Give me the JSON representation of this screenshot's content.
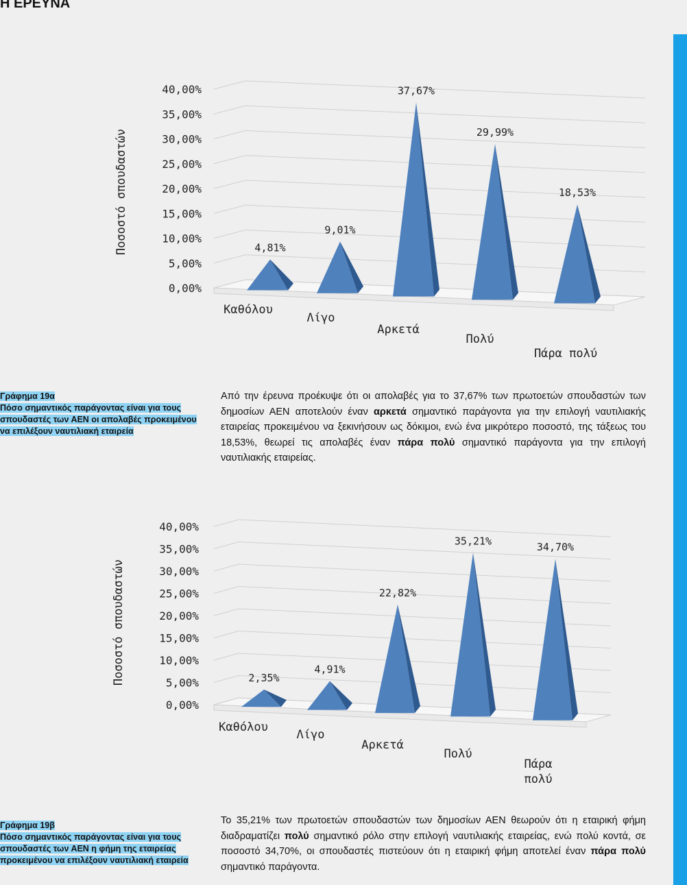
{
  "header": {
    "title": "Η ΕΡΕΥΝΑ"
  },
  "chart_data": [
    {
      "type": "bar",
      "categories": [
        "Καθόλου",
        "Λίγο",
        "Αρκετά",
        "Πολύ",
        "Πάρα πολύ"
      ],
      "values": [
        4.81,
        9.01,
        37.67,
        29.99,
        18.53
      ],
      "value_labels": [
        "4,81%",
        "9,01%",
        "37,67%",
        "29,99%",
        "18,53%"
      ],
      "yticks": [
        "0,00%",
        "5,00%",
        "10,00%",
        "15,00%",
        "20,00%",
        "25,00%",
        "30,00%",
        "35,00%",
        "40,00%"
      ],
      "ylabel": "Ποσοστό σπουδαστών",
      "ylim": [
        0,
        40
      ],
      "grid": true,
      "color": "#4f81bd"
    },
    {
      "type": "bar",
      "categories": [
        "Καθόλου",
        "Λίγο",
        "Αρκετά",
        "Πολύ",
        "Πάρα πολύ"
      ],
      "values": [
        2.35,
        4.91,
        22.82,
        35.21,
        34.7
      ],
      "value_labels": [
        "2,35%",
        "4,91%",
        "22,82%",
        "35,21%",
        "34,70%"
      ],
      "yticks": [
        "0,00%",
        "5,00%",
        "10,00%",
        "15,00%",
        "20,00%",
        "25,00%",
        "30,00%",
        "35,00%",
        "40,00%"
      ],
      "ylabel": "Ποσοστό σπουδαστών",
      "ylim": [
        0,
        40
      ],
      "grid": true,
      "color": "#4f81bd"
    }
  ],
  "captions": [
    {
      "title": "Γράφημα 19α",
      "body": "Πόσο σημαντικός παράγοντας είναι για τους σπουδαστές των ΑΕΝ οι απολαβές προκειμένου να επιλέξουν ναυτιλιακή εταιρεία"
    },
    {
      "title": "Γράφημα 19β",
      "body": "Πόσο σημαντικός παράγοντας είναι για τους σπουδαστές των ΑΕΝ η φήμη της εταιρείας προκειμένου να επιλέξουν ναυτιλιακή εταιρεία"
    }
  ],
  "paragraphs": [
    {
      "p1": "Από την έρευνα προέκυψε ότι οι απολαβές για το 37,67% των πρωτοετών σπουδαστών των δημοσίων ΑΕΝ αποτελούν έναν ",
      "b1": "αρκετά",
      "p2": " σημαντικό παράγοντα για την επιλογή ναυτιλιακής εταιρείας προκειμένου να ξεκινήσουν ως δόκιμοι, ενώ ένα μικρότερο ποσοστό, της τάξεως του 18,53%, θεωρεί τις απολαβές έναν ",
      "b2": "πάρα πολύ",
      "p3": " σημαντικό παράγοντα για την επιλογή ναυτιλιακής εταιρείας."
    },
    {
      "p1": "Το 35,21% των πρωτοετών σπουδαστών των δημοσίων ΑΕΝ θεωρούν ότι η εταιρική φήμη διαδραματίζει ",
      "b1": "πολύ",
      "p2": " σημαντικό ρόλο στην επιλογή ναυτιλιακής εταιρείας, ενώ πολύ κοντά, σε ποσοστό 34,70%, οι σπουδαστές πιστεύουν ότι η εταιρική φήμη αποτελεί έναν ",
      "b2": "πάρα πολύ",
      "p3": " σημαντικό παράγοντα."
    }
  ]
}
